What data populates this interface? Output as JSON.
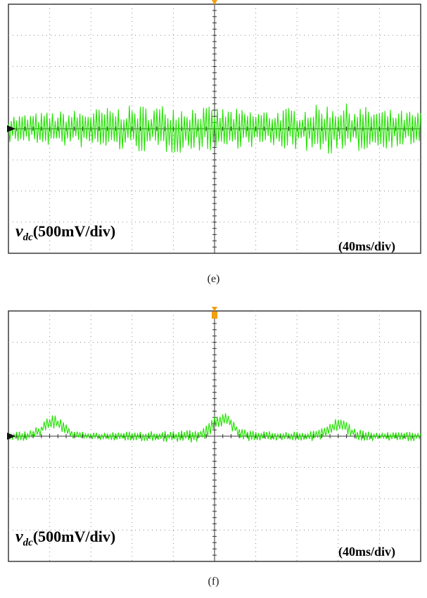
{
  "trace_color": "#22e000",
  "grid_color": "#8c8c8c",
  "frame_color": "#3a3a3a",
  "marker_color": "#111111",
  "trigger_color": "#f0a010",
  "chart_data": [
    {
      "type": "line",
      "caption": "(e)",
      "channel_label": {
        "symbol": "v",
        "subscript": "dc",
        "scale": "(500mV/div)"
      },
      "time_scale": "(40ms/div)",
      "x_divisions": 10,
      "y_divisions": 8,
      "grid": true,
      "x_range_div": [
        0,
        10
      ],
      "y_range_div": [
        -4,
        4
      ],
      "noise_amplitude_div": 0.6,
      "envelope_div": [
        [
          0,
          0.45
        ],
        [
          1,
          0.55
        ],
        [
          2,
          0.65
        ],
        [
          3,
          0.75
        ],
        [
          4,
          0.8
        ],
        [
          5,
          0.7
        ],
        [
          6,
          0.6
        ],
        [
          7,
          0.7
        ],
        [
          8,
          0.85
        ],
        [
          9,
          0.65
        ],
        [
          10,
          0.55
        ]
      ],
      "seed": 7
    },
    {
      "type": "line",
      "caption": "(f)",
      "channel_label": {
        "symbol": "v",
        "subscript": "dc",
        "scale": "(500mV/div)"
      },
      "time_scale": "(40ms/div)",
      "x_divisions": 10,
      "y_divisions": 8,
      "grid": true,
      "x_range_div": [
        0,
        10
      ],
      "y_range_div": [
        -4,
        4
      ],
      "noise_amplitude_div": 0.25,
      "envelope_div": [
        [
          0,
          0.3
        ],
        [
          1,
          0.55
        ],
        [
          2,
          0.3
        ],
        [
          3,
          0.35
        ],
        [
          4,
          0.45
        ],
        [
          5,
          0.6
        ],
        [
          6,
          0.4
        ],
        [
          7,
          0.35
        ],
        [
          8,
          0.5
        ],
        [
          9,
          0.35
        ],
        [
          10,
          0.4
        ]
      ],
      "offset_bumps_div": [
        [
          1.1,
          0.45
        ],
        [
          5.2,
          0.55
        ],
        [
          8.0,
          0.35
        ]
      ],
      "seed": 19
    }
  ]
}
